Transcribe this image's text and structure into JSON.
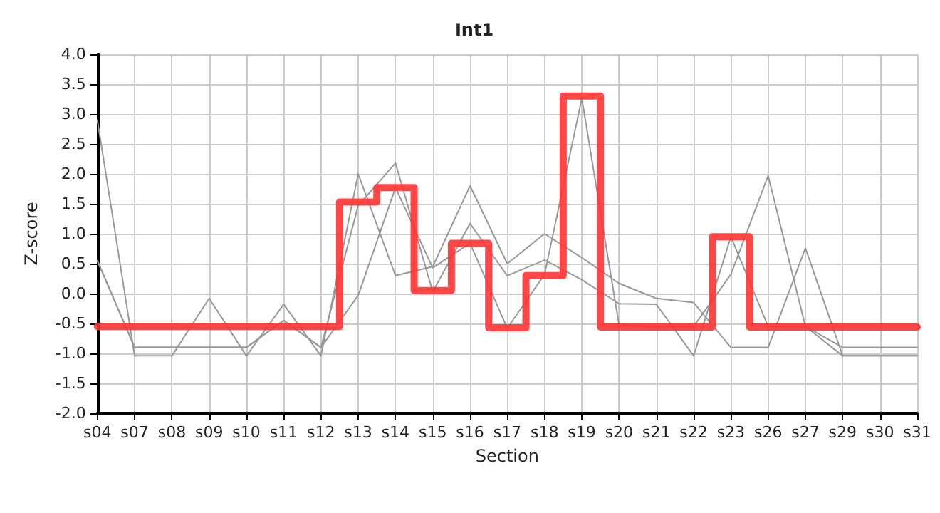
{
  "chart_data": {
    "type": "line",
    "title": "Int1",
    "xlabel": "Section",
    "ylabel": "Z-score",
    "categories": [
      "s04",
      "s07",
      "s08",
      "s09",
      "s10",
      "s11",
      "s12",
      "s13",
      "s14",
      "s15",
      "s16",
      "s17",
      "s18",
      "s19",
      "s20",
      "s21",
      "s22",
      "s23",
      "s26",
      "s27",
      "s29",
      "s30",
      "s31"
    ],
    "series": [
      {
        "color": "#999999",
        "values": [
          2.9,
          -1.04,
          -1.04,
          -0.08,
          -1.04,
          -0.18,
          -1.04,
          2.0,
          0.3,
          0.45,
          1.8,
          0.5,
          1.0,
          0.6,
          0.17,
          -0.08,
          -0.15,
          -0.9,
          -0.9,
          0.76,
          -1.04,
          -1.04,
          -1.04
        ]
      },
      {
        "color": "#999999",
        "values": [
          0.55,
          -0.9,
          -0.9,
          -0.9,
          -0.9,
          -0.45,
          -0.9,
          1.47,
          2.18,
          0.03,
          1.17,
          0.3,
          0.56,
          0.23,
          -0.17,
          -0.18,
          -1.04,
          0.95,
          -0.55,
          -0.55,
          -0.9,
          -0.9,
          -0.9
        ]
      },
      {
        "color": "#999999",
        "values": [
          0.55,
          -0.9,
          -0.9,
          -0.9,
          -0.9,
          -0.45,
          -0.9,
          -0.03,
          1.77,
          0.43,
          0.84,
          -0.58,
          0.32,
          3.26,
          -0.53,
          -0.55,
          -0.55,
          0.32,
          1.97,
          -0.55,
          -1.04,
          -1.04,
          -1.04
        ]
      },
      {
        "type": "step",
        "color": "#ff3333",
        "values": [
          -0.55,
          -0.55,
          -0.55,
          -0.55,
          -0.55,
          -0.55,
          -0.55,
          1.53,
          1.77,
          0.05,
          0.84,
          -0.57,
          0.3,
          3.3,
          -0.56,
          -0.56,
          -0.56,
          0.95,
          -0.56,
          -0.56,
          -0.56,
          -0.56,
          -0.56
        ]
      }
    ],
    "ylim": [
      -2,
      4
    ],
    "yticks": [
      {
        "value": -2,
        "label": "-2.0"
      },
      {
        "value": -1.5,
        "label": "-1.5"
      },
      {
        "value": -1,
        "label": "-1.0"
      },
      {
        "value": -0.5,
        "label": "-0.5"
      },
      {
        "value": 0,
        "label": "0.0"
      },
      {
        "value": 0.5,
        "label": "0.5"
      },
      {
        "value": 1,
        "label": "1.0"
      },
      {
        "value": 1.5,
        "label": "1.5"
      },
      {
        "value": 2,
        "label": "2.0"
      },
      {
        "value": 2.5,
        "label": "2.5"
      },
      {
        "value": 3,
        "label": "3.0"
      },
      {
        "value": 3.5,
        "label": "3.5"
      },
      {
        "value": 4,
        "label": "4.0"
      }
    ],
    "grid": true,
    "marker": "none",
    "line_style": "solid"
  }
}
